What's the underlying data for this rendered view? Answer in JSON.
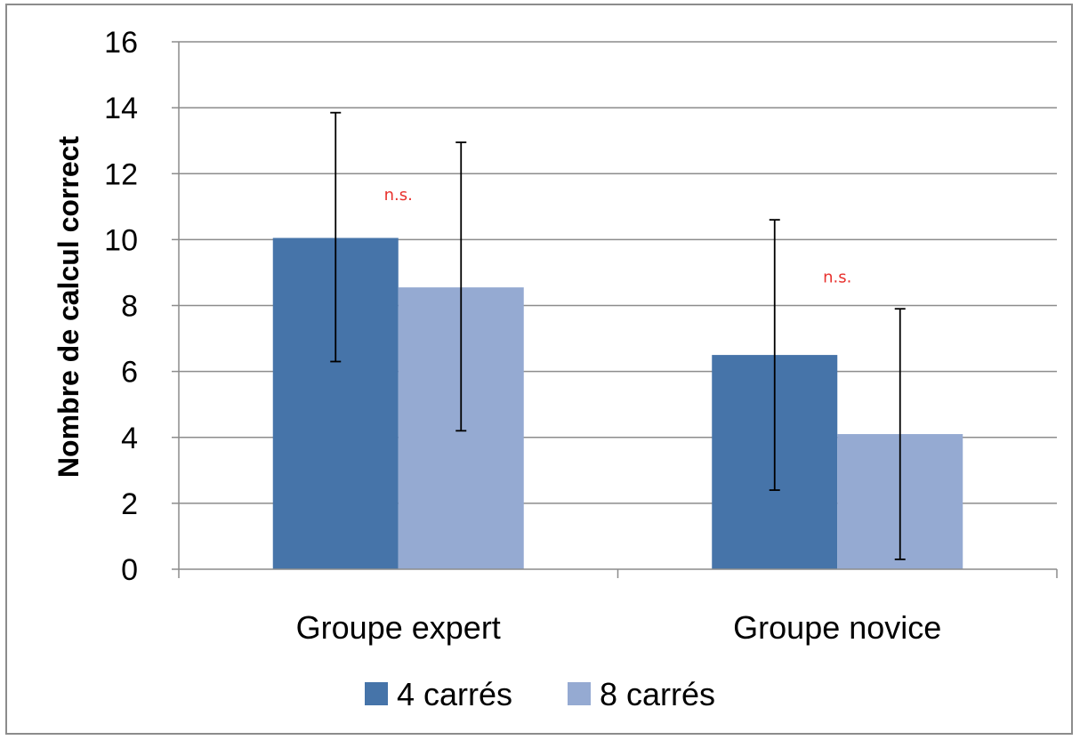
{
  "chart_data": {
    "type": "bar",
    "title": "",
    "xlabel": "",
    "ylabel": "Nombre de calcul correct",
    "ylim": [
      0,
      16
    ],
    "yticks": [
      0,
      2,
      4,
      6,
      8,
      10,
      12,
      14,
      16
    ],
    "grid": true,
    "legend_position": "bottom",
    "categories": [
      "Groupe expert",
      "Groupe novice"
    ],
    "series": [
      {
        "name": "4 carrés",
        "color": "#4674A9",
        "values": [
          10.05,
          6.5
        ],
        "error_low": [
          6.3,
          2.4
        ],
        "error_high": [
          13.85,
          10.6
        ]
      },
      {
        "name": "8 carrés",
        "color": "#95AAD2",
        "values": [
          8.55,
          4.1
        ],
        "error_low": [
          4.2,
          0.3
        ],
        "error_high": [
          12.95,
          7.9
        ]
      }
    ],
    "annotations": [
      {
        "text": "n.s.",
        "category": "Groupe expert",
        "y": 11.2,
        "color": "#e8322e"
      },
      {
        "text": "n.s.",
        "category": "Groupe novice",
        "y": 8.7,
        "color": "#e8322e"
      }
    ]
  }
}
